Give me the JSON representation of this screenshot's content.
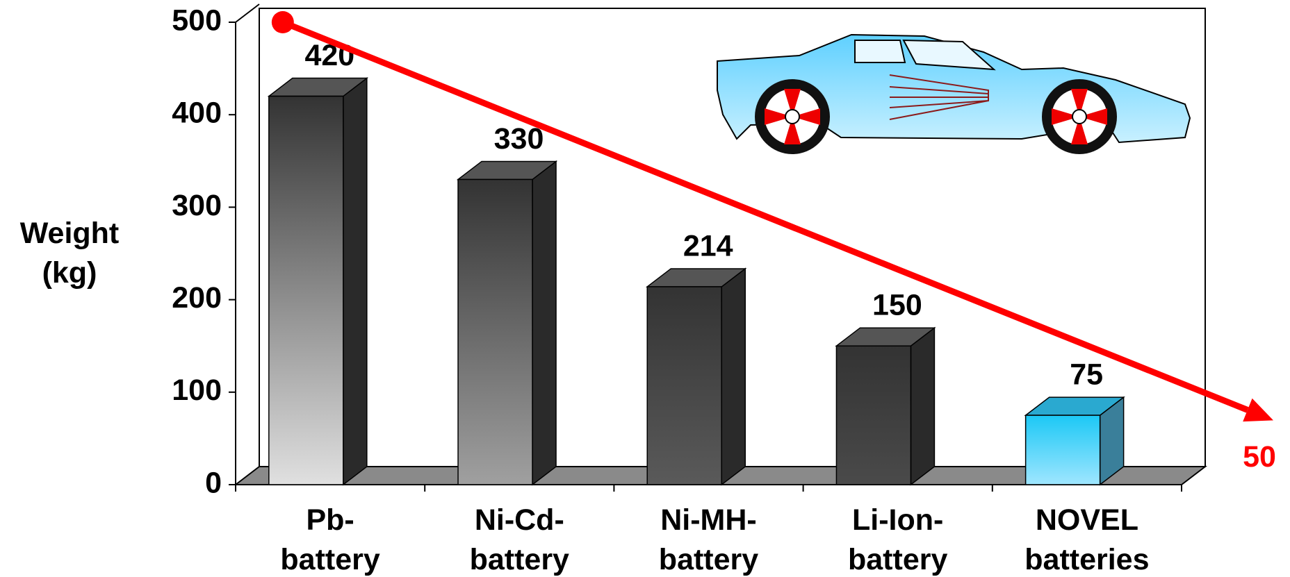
{
  "chart_data": {
    "type": "bar3d",
    "y_label": "Weight\n(kg)",
    "categories": [
      "Pb-\nbattery",
      "Ni-Cd-\nbattery",
      "Ni-MH-\nbattery",
      "Li-Ion-\nbattery",
      "NOVEL\nbatteries"
    ],
    "values": [
      420,
      330,
      214,
      150,
      75
    ],
    "colors": [
      "#e0e0e0",
      "#a0a0a0",
      "#5a5a5a",
      "#4a4a4a",
      "#9fe6ff"
    ],
    "ylim": [
      0,
      500
    ],
    "yticks": [
      0,
      100,
      200,
      300,
      400,
      500
    ],
    "trend": {
      "start": 500,
      "end": 50,
      "color": "#ff0000"
    }
  }
}
